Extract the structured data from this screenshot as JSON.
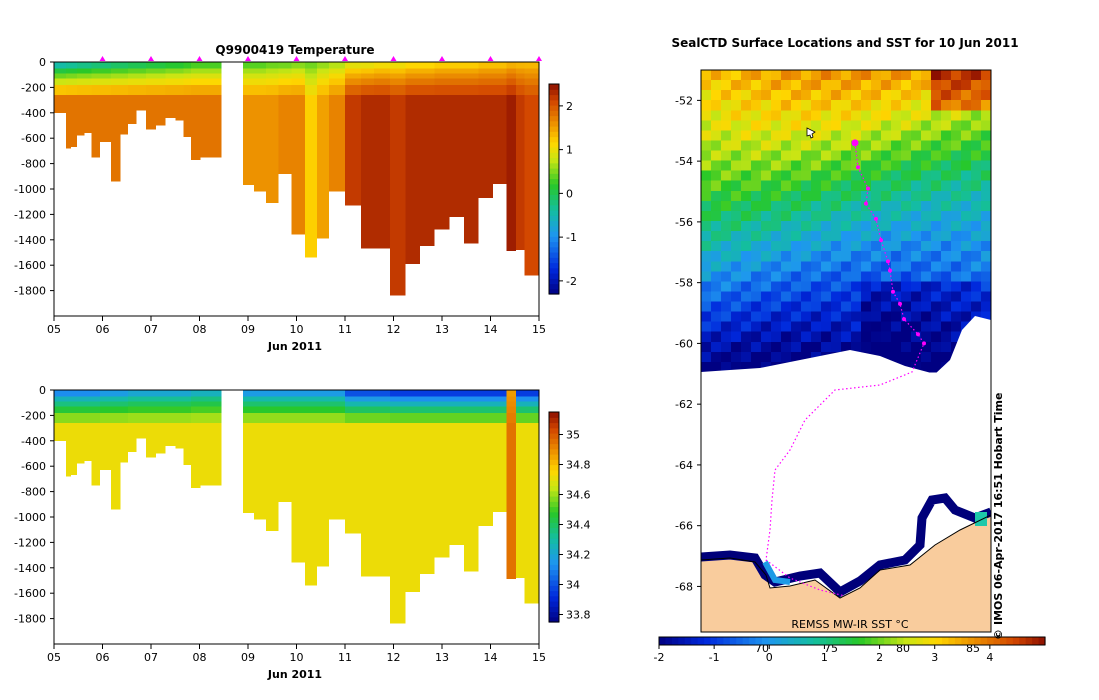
{
  "credit": "IMOS 06-Apr-2017 16:51 Hobart Time",
  "copyright": "©",
  "colors": {
    "cold": "#00007a",
    "cool": "#1e7ae6",
    "mid": "#1ec81e",
    "warm": "#ffd400",
    "hot": "#e68200",
    "max": "#8c1200",
    "land": "#f9cc9d",
    "track": "#ff00ff",
    "ice": "#ffffff"
  },
  "chart_data": [
    {
      "type": "heatmap",
      "id": "temperature_section",
      "title": "Q9900419  Temperature",
      "xlabel": "Jun 2011",
      "ylabel": "",
      "xlim": [
        5,
        15
      ],
      "ylim": [
        -2000,
        0
      ],
      "xtick_labels": [
        "05",
        "06",
        "07",
        "08",
        "09",
        "10",
        "11",
        "12",
        "13",
        "14",
        "15"
      ],
      "ytick_labels": [
        "0",
        "-200",
        "-400",
        "-600",
        "-800",
        "-1000",
        "-1200",
        "-1400",
        "-1600",
        "-1800"
      ],
      "colorbar": {
        "range": [
          -2.3,
          2.5
        ],
        "tick_labels": [
          "-2",
          "-1",
          "0",
          "1",
          "2"
        ],
        "tick_values": [
          -2,
          -1,
          0,
          1,
          2
        ]
      },
      "surface_markers_x": [
        6.0,
        7.0,
        8.0,
        9.0,
        10.0,
        11.0,
        12.0,
        13.0,
        14.0,
        15.0
      ],
      "profiles": {
        "time_day": [
          5.2,
          5.3,
          5.4,
          5.55,
          5.7,
          5.85,
          6.05,
          6.3,
          6.45,
          6.6,
          6.8,
          7.0,
          7.2,
          7.4,
          7.6,
          7.75,
          7.9,
          8.15,
          9.0,
          9.25,
          9.5,
          9.75,
          10.05,
          10.3,
          10.55,
          10.8,
          11.2,
          11.45,
          11.75,
          12.1,
          12.4,
          12.7,
          13.0,
          13.3,
          13.6,
          13.9,
          14.2,
          14.45,
          14.6,
          14.8
        ],
        "max_depth_m": [
          400,
          680,
          670,
          580,
          560,
          750,
          630,
          940,
          570,
          490,
          380,
          530,
          500,
          440,
          460,
          590,
          770,
          750,
          970,
          1020,
          1110,
          880,
          1360,
          1540,
          1390,
          1020,
          1130,
          1470,
          1470,
          1840,
          1590,
          1450,
          1320,
          1220,
          1430,
          1070,
          960,
          1490,
          1480,
          1680
        ],
        "surface_temp": [
          -0.9,
          -0.8,
          -0.8,
          -0.7,
          -0.7,
          -0.6,
          -0.6,
          -0.5,
          -0.5,
          -0.4,
          -0.4,
          -0.3,
          -0.3,
          -0.2,
          -0.2,
          -0.1,
          0.0,
          0.0,
          0.1,
          0.1,
          0.2,
          0.2,
          0.3,
          0.3,
          0.4,
          0.5,
          0.7,
          0.7,
          0.8,
          0.8,
          0.9,
          0.9,
          1.0,
          1.0,
          1.0,
          1.1,
          1.1,
          1.2,
          1.2,
          1.2
        ],
        "deep_temp": [
          1.8,
          1.8,
          1.8,
          1.8,
          1.8,
          1.8,
          1.8,
          1.8,
          1.8,
          1.8,
          1.8,
          1.8,
          1.8,
          1.8,
          1.8,
          1.8,
          1.8,
          1.8,
          1.6,
          1.6,
          1.6,
          1.7,
          1.7,
          1.2,
          1.5,
          1.7,
          2.2,
          2.3,
          2.3,
          2.2,
          2.3,
          2.3,
          2.3,
          2.3,
          2.3,
          2.3,
          2.3,
          2.4,
          2.2,
          2.1
        ]
      },
      "gap_days": [
        8.45,
        8.9
      ]
    },
    {
      "type": "heatmap",
      "id": "salinity_section",
      "title": "",
      "xlabel": "Jun 2011",
      "ylabel": "",
      "xlim": [
        5,
        15
      ],
      "ylim": [
        -2000,
        0
      ],
      "xtick_labels": [
        "05",
        "06",
        "07",
        "08",
        "09",
        "10",
        "11",
        "12",
        "13",
        "14",
        "15"
      ],
      "ytick_labels": [
        "0",
        "-200",
        "-400",
        "-600",
        "-800",
        "-1000",
        "-1200",
        "-1400",
        "-1600",
        "-1800"
      ],
      "colorbar": {
        "range": [
          33.75,
          35.15
        ],
        "tick_labels": [
          "33.8",
          "34",
          "34.2",
          "34.4",
          "34.6",
          "34.8",
          "35"
        ],
        "tick_values": [
          33.8,
          34.0,
          34.2,
          34.4,
          34.6,
          34.8,
          35.0
        ]
      },
      "profiles": {
        "surface_sal": [
          34.0,
          34.0,
          34.0,
          34.0,
          34.0,
          34.0,
          34.05,
          34.05,
          34.05,
          34.1,
          34.1,
          34.1,
          34.1,
          34.1,
          34.1,
          34.1,
          34.15,
          34.15,
          34.05,
          34.05,
          34.05,
          34.05,
          34.05,
          34.05,
          34.05,
          34.05,
          33.85,
          33.85,
          33.85,
          33.8,
          33.8,
          33.8,
          33.8,
          33.8,
          33.8,
          33.8,
          33.8,
          34.85,
          33.8,
          33.8
        ],
        "deep_sal": [
          34.72,
          34.72,
          34.72,
          34.72,
          34.72,
          34.72,
          34.72,
          34.72,
          34.72,
          34.72,
          34.72,
          34.72,
          34.72,
          34.72,
          34.72,
          34.72,
          34.72,
          34.72,
          34.72,
          34.72,
          34.72,
          34.72,
          34.72,
          34.72,
          34.72,
          34.72,
          34.72,
          34.72,
          34.72,
          34.72,
          34.72,
          34.72,
          34.72,
          34.72,
          34.72,
          34.72,
          34.72,
          34.95,
          34.72,
          34.72
        ]
      }
    },
    {
      "type": "heatmap",
      "id": "sst_map",
      "title": "SealCTD Surface Locations and SST for 10 Jun 2011",
      "xlabel": "",
      "ylabel": "",
      "ylim": [
        -69.5,
        -51
      ],
      "ytick_labels": [
        "-52",
        "-54",
        "-56",
        "-58",
        "-60",
        "-62",
        "-64",
        "-66",
        "-68"
      ],
      "xtick_labels": [
        "70",
        "75",
        "80",
        "85"
      ],
      "source_label": "REMSS MW-IR SST °C",
      "colorbar": {
        "range": [
          -2,
          5
        ],
        "tick_labels": [
          "-2",
          "-1",
          "0",
          "1",
          "2",
          "3",
          "4"
        ],
        "tick_values": [
          -2,
          -1,
          0,
          1,
          2,
          3,
          4
        ],
        "orientation": "horizontal"
      },
      "track_latitudes": [
        -53.4,
        -54.2,
        -54.9,
        -55.4,
        -55.9,
        -56.6,
        -57.3,
        -57.6,
        -58.3,
        -58.7,
        -59.2,
        -59.7,
        -60.0
      ]
    }
  ]
}
